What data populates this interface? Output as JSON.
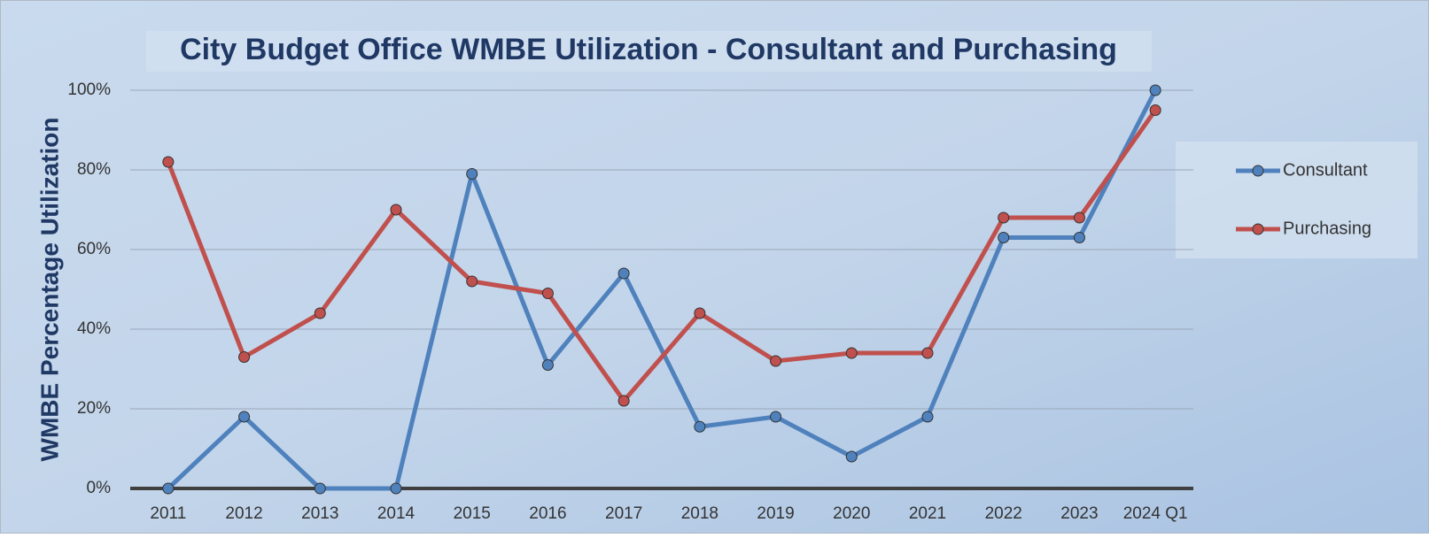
{
  "chart_data": {
    "type": "line",
    "title": "City Budget Office WMBE Utilization - Consultant and Purchasing",
    "y_label": "WMBE Percentage Utilization",
    "categories": [
      "2011",
      "2012",
      "2013",
      "2014",
      "2015",
      "2016",
      "2017",
      "2018",
      "2019",
      "2020",
      "2021",
      "2022",
      "2023",
      "2024 Q1"
    ],
    "series": [
      {
        "name": "Consultant",
        "color": "#4f81bd",
        "values": [
          0,
          18,
          0,
          0,
          79,
          31,
          54,
          15.5,
          18,
          8,
          18,
          63,
          63,
          100
        ]
      },
      {
        "name": "Purchasing",
        "color": "#c0504d",
        "values": [
          82,
          33,
          44,
          70,
          52,
          49,
          22,
          44,
          32,
          34,
          34,
          68,
          68,
          95
        ]
      }
    ],
    "ylim": [
      0,
      100
    ],
    "yticks": [
      {
        "value": 0,
        "label": "0%"
      },
      {
        "value": 20,
        "label": "20%"
      },
      {
        "value": 40,
        "label": "40%"
      },
      {
        "value": 60,
        "label": "60%"
      },
      {
        "value": 80,
        "label": "80%"
      },
      {
        "value": 100,
        "label": "100%"
      }
    ],
    "grid": true,
    "legend": "right"
  }
}
